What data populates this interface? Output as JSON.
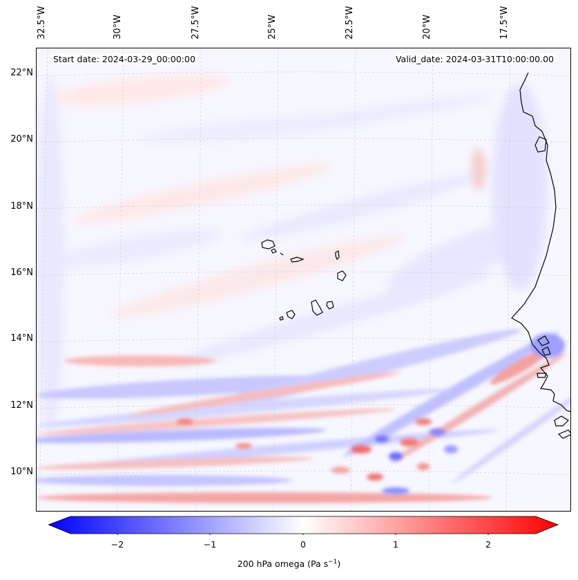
{
  "header": {
    "start_date": "Start date: 2024-03-29_00:00:00",
    "valid_date": "Valid_date: 2024-03-31T10:00:00.00"
  },
  "axes": {
    "lon_ticks": [
      "32.5°W",
      "30°W",
      "27.5°W",
      "25°W",
      "22.5°W",
      "20°W",
      "17.5°W"
    ],
    "lat_ticks": [
      "22°N",
      "20°N",
      "18°N",
      "16°N",
      "14°N",
      "12°N",
      "10°N"
    ]
  },
  "colorbar": {
    "label": "200 hPa omega (Pa s",
    "label_sup": "−1",
    "label_end": ")",
    "ticks": [
      "−2",
      "−1",
      "0",
      "1",
      "2"
    ],
    "min": -2.7,
    "max": 2.7,
    "colors": {
      "negative": "#0000ff",
      "zero": "#ffffff",
      "positive": "#ff0000"
    }
  },
  "map": {
    "field": "200 hPa omega",
    "land_outlines": [
      "West African coast",
      "Cape Verde islands"
    ],
    "grid": true
  }
}
